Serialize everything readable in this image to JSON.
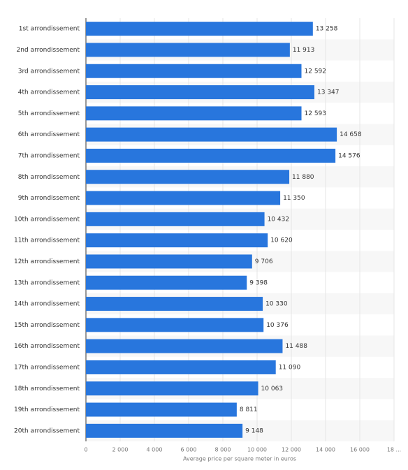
{
  "chart_data": {
    "type": "bar",
    "orientation": "horizontal",
    "x_label": "Average price per square meter in euros",
    "categories": [
      "1st arrondissement",
      "2nd arrondissement",
      "3rd arrondissement",
      "4th arrondissement",
      "5th arrondissement",
      "6th arrondissement",
      "7th arrondissement",
      "8th arrondissement",
      "9th arrondissement",
      "10th arrondissement",
      "11th arrondissement",
      "12th arrondissement",
      "13th arrondissement",
      "14th arrondissement",
      "15th arrondissement",
      "16th arrondissement",
      "17th arrondissement",
      "18th arrondissement",
      "19th arrondissement",
      "20th arrondissement"
    ],
    "values": [
      13258,
      11913,
      12592,
      13347,
      12593,
      14658,
      14576,
      11880,
      11350,
      10432,
      10620,
      9706,
      9398,
      10330,
      10376,
      11488,
      11090,
      10063,
      8811,
      9148
    ],
    "value_labels": [
      "13 258",
      "11 913",
      "12 592",
      "13 347",
      "12 593",
      "14 658",
      "14 576",
      "11 880",
      "11 350",
      "10 432",
      "10 620",
      "9 706",
      "9 398",
      "10 330",
      "10 376",
      "11 488",
      "11 090",
      "10 063",
      "8 811",
      "9 148"
    ],
    "color": "#2876dd",
    "xlim": [
      0,
      18000
    ],
    "xticks": [
      0,
      {
        "value": 2000,
        "label": "2 000"
      },
      {
        "value": 4000,
        "label": "4 000"
      },
      {
        "value": 6000,
        "label": "6 000"
      },
      {
        "value": 8000,
        "label": "8 000"
      },
      {
        "value": 10000,
        "label": "10 000"
      },
      {
        "value": 12000,
        "label": "12 000"
      },
      {
        "value": 14000,
        "label": "14 000"
      },
      {
        "value": 16000,
        "label": "16 000"
      },
      {
        "value": 18000,
        "label": "18 ..."
      }
    ],
    "grid": true
  }
}
